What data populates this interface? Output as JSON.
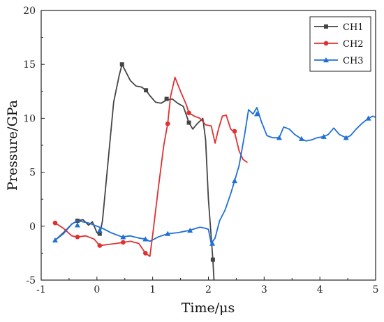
{
  "chart_data": {
    "type": "line",
    "xlabel": "Time/μs",
    "ylabel": "Pressure/GPa",
    "xlim": [
      -1,
      5
    ],
    "ylim": [
      -5,
      20
    ],
    "xticks": [
      -1,
      0,
      1,
      2,
      3,
      4,
      5
    ],
    "yticks": [
      -5,
      0,
      5,
      10,
      15,
      20
    ],
    "grid": false,
    "legend_position": "top-right",
    "series": [
      {
        "name": "CH1",
        "color": "#444444",
        "marker": "square",
        "x": [
          -0.75,
          -0.6,
          -0.45,
          -0.35,
          -0.25,
          -0.15,
          -0.08,
          0.0,
          0.05,
          0.1,
          0.2,
          0.3,
          0.4,
          0.45,
          0.5,
          0.6,
          0.7,
          0.8,
          0.88,
          0.95,
          1.05,
          1.15,
          1.25,
          1.35,
          1.45,
          1.55,
          1.65,
          1.72,
          1.8,
          1.9,
          1.95,
          2.0,
          2.05,
          2.08,
          2.1
        ],
        "y": [
          -1.3,
          -0.6,
          0.2,
          0.5,
          0.6,
          0.1,
          0.4,
          -0.6,
          -0.8,
          0.5,
          6.0,
          11.5,
          14.0,
          15.0,
          14.5,
          13.5,
          13.0,
          12.9,
          12.6,
          12.1,
          11.5,
          11.4,
          11.7,
          11.8,
          11.4,
          11.1,
          9.6,
          9.0,
          9.5,
          10.0,
          8.0,
          2.5,
          -1.0,
          -3.1,
          -5.0
        ],
        "marker_x": [
          -0.35,
          0.05,
          0.45,
          0.88,
          1.25,
          1.65,
          2.08
        ],
        "marker_y": [
          0.5,
          -0.7,
          15.0,
          12.6,
          11.8,
          9.6,
          -3.1
        ]
      },
      {
        "name": "CH2",
        "color": "#e03030",
        "marker": "circle",
        "x": [
          -0.75,
          -0.6,
          -0.45,
          -0.35,
          -0.2,
          -0.05,
          0.05,
          0.2,
          0.35,
          0.47,
          0.6,
          0.75,
          0.87,
          0.95,
          1.0,
          1.1,
          1.2,
          1.27,
          1.32,
          1.4,
          1.5,
          1.6,
          1.65,
          1.75,
          1.85,
          1.95,
          2.05,
          2.12,
          2.18,
          2.25,
          2.32,
          2.4,
          2.47,
          2.55,
          2.62,
          2.7
        ],
        "y": [
          0.3,
          -0.2,
          -0.9,
          -1.0,
          -0.9,
          -1.2,
          -1.8,
          -1.7,
          -1.6,
          -1.5,
          -1.4,
          -1.6,
          -2.5,
          -2.8,
          -0.8,
          3.5,
          7.5,
          9.5,
          12.0,
          13.8,
          12.5,
          11.3,
          10.5,
          10.2,
          10.0,
          9.4,
          9.3,
          7.7,
          9.0,
          10.2,
          10.3,
          9.0,
          8.7,
          7.0,
          6.2,
          5.9
        ],
        "marker_x": [
          -0.75,
          -0.35,
          0.05,
          0.47,
          0.87,
          1.27,
          1.65,
          2.47
        ],
        "marker_y": [
          0.3,
          -1.0,
          -1.8,
          -1.5,
          -2.5,
          9.5,
          10.5,
          8.8
        ]
      },
      {
        "name": "CH3",
        "color": "#1f6fd6",
        "marker": "triangle",
        "x": [
          -0.75,
          -0.6,
          -0.45,
          -0.35,
          -0.25,
          -0.15,
          0.0,
          0.1,
          0.25,
          0.45,
          0.6,
          0.75,
          0.87,
          0.95,
          1.1,
          1.27,
          1.45,
          1.65,
          1.85,
          1.95,
          2.0,
          2.05,
          2.12,
          2.2,
          2.3,
          2.4,
          2.47,
          2.55,
          2.65,
          2.72,
          2.8,
          2.87,
          2.95,
          3.05,
          3.15,
          3.27,
          3.35,
          3.45,
          3.55,
          3.67,
          3.75,
          3.85,
          3.95,
          4.07,
          4.15,
          4.25,
          4.35,
          4.47,
          4.55,
          4.65,
          4.75,
          4.87,
          4.95,
          5.0
        ],
        "y": [
          -1.3,
          -0.7,
          0.2,
          0.5,
          0.4,
          0.3,
          0.0,
          -0.2,
          -0.6,
          -1.0,
          -0.9,
          -1.1,
          -1.2,
          -1.4,
          -1.0,
          -0.7,
          -0.6,
          -0.4,
          -0.1,
          -0.2,
          -0.3,
          -1.6,
          -1.1,
          0.5,
          1.5,
          3.0,
          4.2,
          5.6,
          8.5,
          10.8,
          10.4,
          11.0,
          9.7,
          8.4,
          8.2,
          8.2,
          9.2,
          9.0,
          8.5,
          8.1,
          7.9,
          8.0,
          8.2,
          8.3,
          8.5,
          9.1,
          8.5,
          8.2,
          8.4,
          9.0,
          9.5,
          10.0,
          10.2,
          10.1
        ],
        "marker_x": [
          -0.75,
          -0.35,
          0.05,
          0.47,
          0.87,
          1.27,
          1.67,
          2.07,
          2.47,
          2.87,
          3.27,
          3.67,
          4.07,
          4.47,
          4.87
        ],
        "marker_y": [
          -1.3,
          0.1,
          -0.4,
          -1.0,
          -1.2,
          -0.7,
          -0.4,
          -1.6,
          4.2,
          10.4,
          8.2,
          8.1,
          8.3,
          8.2,
          10.0
        ]
      }
    ]
  }
}
